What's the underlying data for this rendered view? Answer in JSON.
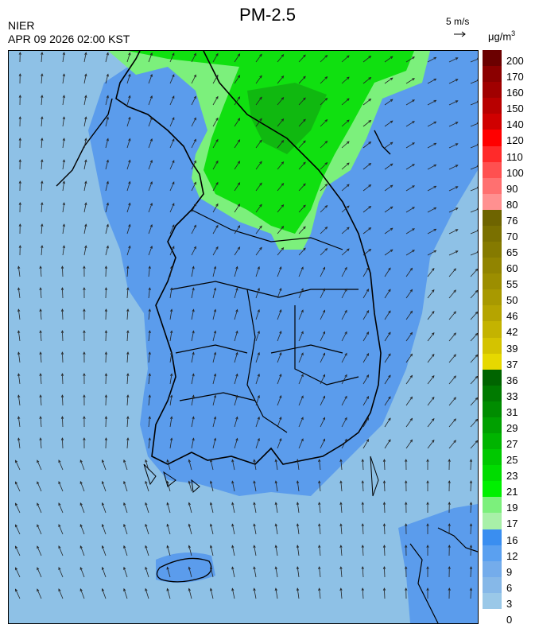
{
  "header": {
    "title": "PM-2.5",
    "agency": "NIER",
    "timestamp": "APR 09 2026 02:00 KST",
    "wind_reference": "5 m/s",
    "unit": "μg/m",
    "unit_exp": "3"
  },
  "legend": {
    "labels": [
      "200",
      "170",
      "160",
      "150",
      "140",
      "120",
      "110",
      "100",
      "90",
      "80",
      "76",
      "70",
      "65",
      "60",
      "55",
      "50",
      "46",
      "42",
      "39",
      "37",
      "36",
      "33",
      "31",
      "29",
      "27",
      "25",
      "23",
      "21",
      "19",
      "17",
      "16",
      "12",
      "9",
      "6",
      "3",
      "0"
    ],
    "colors": [
      "#6b0000",
      "#8b0000",
      "#a00000",
      "#b80000",
      "#d00000",
      "#ff0000",
      "#ff2a2a",
      "#ff5050",
      "#ff7070",
      "#ff9090",
      "#6e6400",
      "#7a7000",
      "#857a00",
      "#918400",
      "#9c8e00",
      "#a89900",
      "#b5a400",
      "#c4b300",
      "#d4c300",
      "#e6d800",
      "#006400",
      "#007a00",
      "#008c00",
      "#00a000",
      "#00b400",
      "#00c800",
      "#00dc00",
      "#00f000",
      "#7cf07c",
      "#a8f0a8",
      "#3a8ef0",
      "#5aa0f0",
      "#74aceb",
      "#86b8e8",
      "#9ac8e8"
    ]
  },
  "regions": {
    "clean_color": "#8ec1e6",
    "moderate_color": "#5b9cec",
    "light_green": "#7cf07c",
    "green": "#10e010",
    "dark_green": "#10b810"
  }
}
